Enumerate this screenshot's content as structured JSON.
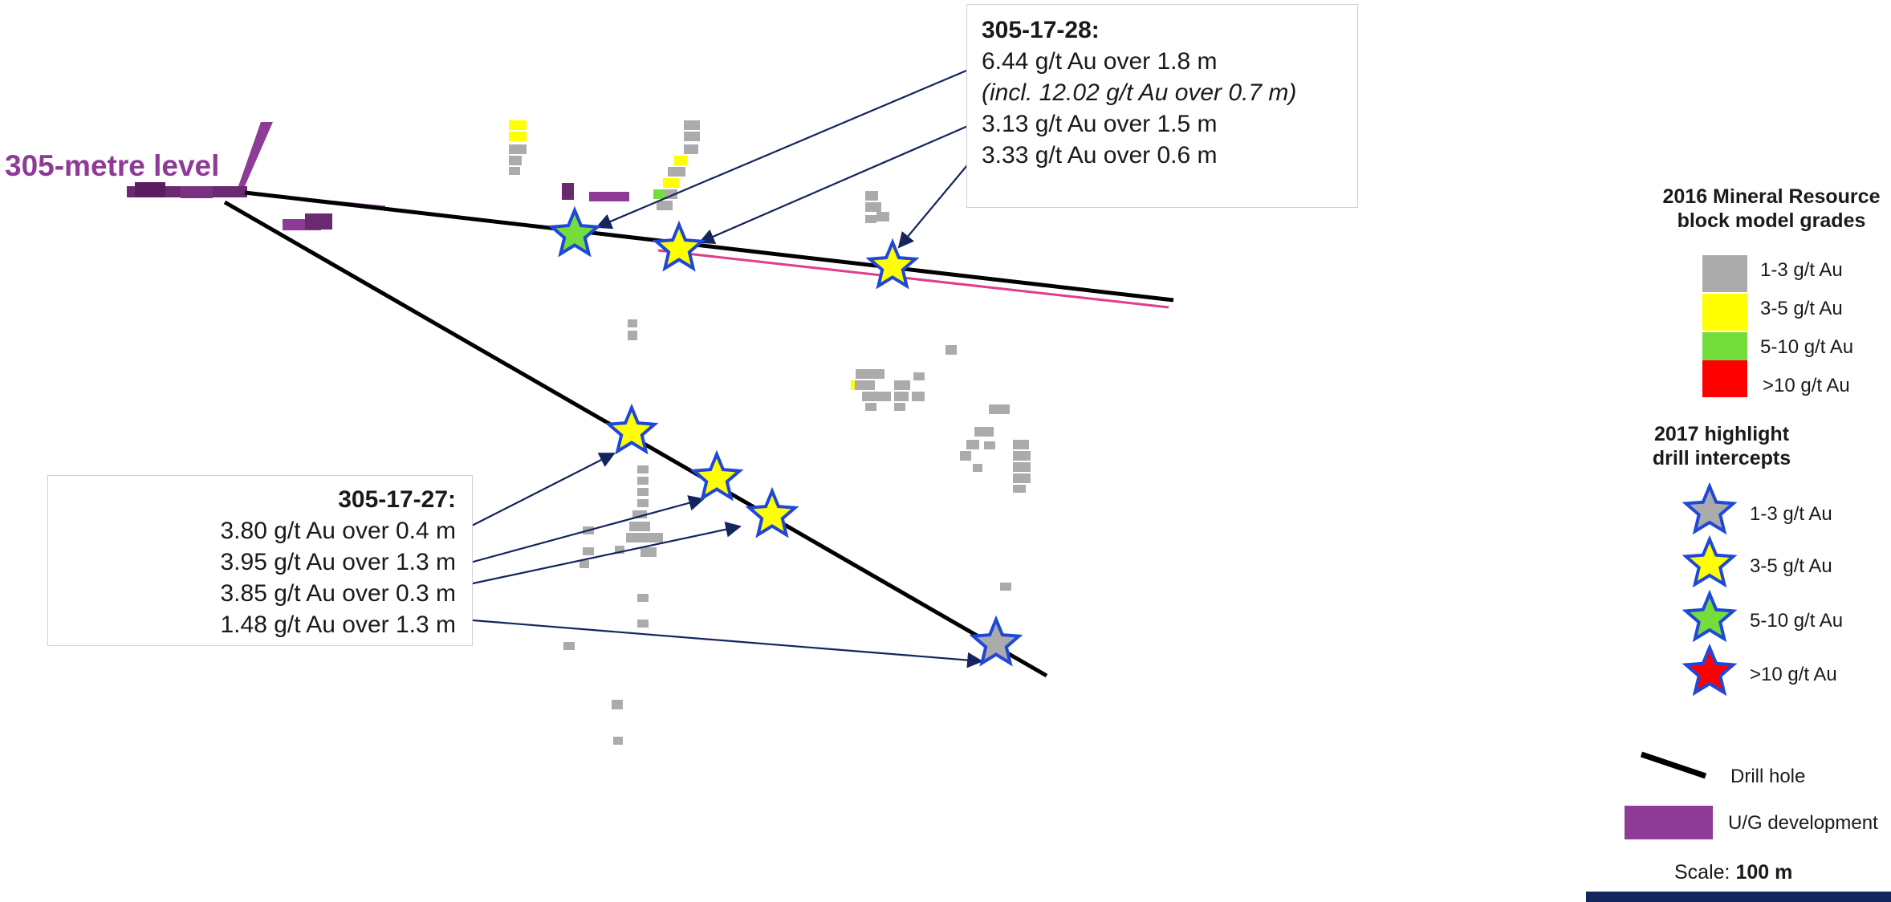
{
  "level_label": "305-metre level",
  "callouts": {
    "hole_28": {
      "title": "305-17-28:",
      "lines": [
        "6.44 g/t Au over 1.8 m",
        "(incl. 12.02 g/t Au over 0.7 m)",
        "3.13 g/t Au over 1.5 m",
        "3.33 g/t Au over 0.6 m"
      ]
    },
    "hole_27": {
      "title": "305-17-27:",
      "lines": [
        "3.80 g/t Au over 0.4 m",
        "3.95 g/t Au over 1.3 m",
        "3.85 g/t Au over 0.3 m",
        "1.48 g/t Au over 1.3 m"
      ]
    }
  },
  "legend": {
    "resource_title": [
      "2016 Mineral Resource",
      "block model grades"
    ],
    "grades": [
      {
        "label": "1-3 g/t Au",
        "color": "#ababab"
      },
      {
        "label": "3-5 g/t Au",
        "color": "#ffff00"
      },
      {
        "label": "5-10 g/t Au",
        "color": "#74dd3c"
      },
      {
        "label": ">10 g/t Au",
        "color": "#ff0000"
      }
    ],
    "drill_title": [
      "2017 highlight",
      "drill intercepts"
    ],
    "stars": [
      {
        "label": "1-3 g/t Au",
        "color": "#ababab"
      },
      {
        "label": "3-5 g/t Au",
        "color": "#ffff00"
      },
      {
        "label": "5-10 g/t Au",
        "color": "#74dd3c"
      },
      {
        "label": ">10 g/t Au",
        "color": "#ff0000"
      }
    ],
    "drill_hole_label": "Drill hole",
    "ug_label": "U/G development",
    "scale_prefix": "Scale: ",
    "scale_value": "100 m"
  },
  "colors": {
    "ug_development": "#8e3a97",
    "star_outline": "#1f47d9",
    "arrow": "#14245c",
    "drill_hole": "#000000",
    "scale_bar": "#14245c"
  }
}
